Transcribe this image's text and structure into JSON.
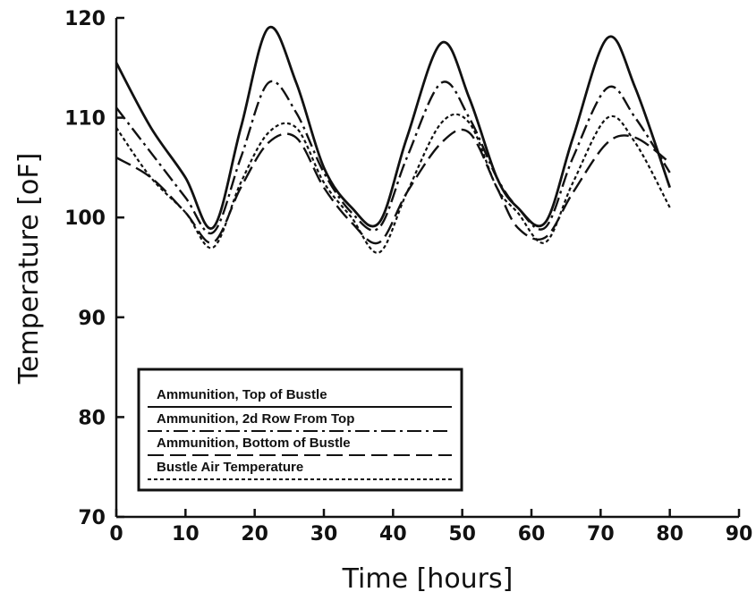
{
  "chart_data": {
    "type": "line",
    "title": "",
    "xlabel": "Time [hours]",
    "ylabel": "Temperature [oF]",
    "xlim": [
      0,
      90
    ],
    "ylim": [
      70,
      120
    ],
    "xticks": [
      0,
      10,
      20,
      30,
      40,
      50,
      60,
      70,
      80,
      90
    ],
    "xtick_labels": [
      "0",
      "10",
      "20",
      "30",
      "40",
      "50",
      "60",
      "70",
      "80",
      "90"
    ],
    "yticks": [
      70,
      80,
      90,
      100,
      110,
      120
    ],
    "ytick_labels": [
      "70",
      "80",
      "90",
      "100",
      "110",
      "120"
    ],
    "grid": false,
    "legend_position": "bottom-left",
    "x": [
      0,
      5,
      10,
      14,
      18,
      22,
      26,
      30,
      34,
      38,
      42,
      47,
      51,
      55,
      58,
      62,
      66,
      71,
      75,
      80
    ],
    "series": [
      {
        "name": "Ammunition, Top of Bustle",
        "style": "solid",
        "values": [
          115.5,
          109,
          104,
          99,
          109,
          119,
          113.5,
          105,
          101,
          99.5,
          108,
          117.5,
          112,
          104,
          101,
          99.5,
          108,
          118,
          113,
          103
        ]
      },
      {
        "name": "Ammunition, 2d Row From Top",
        "style": "dashdot",
        "values": [
          111,
          106.5,
          102,
          98.5,
          106,
          113.5,
          110.5,
          104.5,
          100.5,
          99,
          106,
          113.5,
          110,
          104,
          101,
          99,
          106,
          113,
          110,
          104.5
        ]
      },
      {
        "name": "Ammunition, Bottom of Bustle",
        "style": "longdash",
        "values": [
          106,
          104,
          100.5,
          97.5,
          103,
          107.5,
          108,
          103,
          99.5,
          97.5,
          102.5,
          107.5,
          108.5,
          103,
          99,
          98,
          102.5,
          107.5,
          108,
          105.5
        ]
      },
      {
        "name": "Bustle Air Temperature",
        "style": "dotted",
        "values": [
          109,
          104,
          100.5,
          97,
          103.5,
          108.5,
          109,
          103.5,
          100,
          96.5,
          102.5,
          109.5,
          109.5,
          103,
          100.5,
          97.5,
          103.5,
          110,
          107.5,
          101
        ]
      }
    ]
  }
}
